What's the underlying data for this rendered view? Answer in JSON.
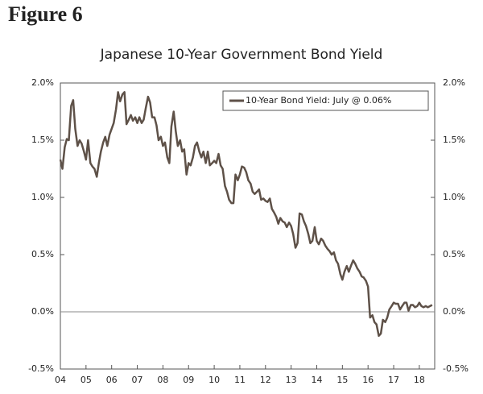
{
  "figure_label": "Figure 6",
  "chart_data": {
    "type": "line",
    "title": "Japanese 10-Year Government Bond Yield",
    "x": [
      2004.0,
      2004.08,
      2004.17,
      2004.25,
      2004.33,
      2004.42,
      2004.5,
      2004.58,
      2004.67,
      2004.75,
      2004.83,
      2004.92,
      2005.0,
      2005.08,
      2005.17,
      2005.25,
      2005.33,
      2005.42,
      2005.5,
      2005.58,
      2005.67,
      2005.75,
      2005.83,
      2005.92,
      2006.0,
      2006.08,
      2006.17,
      2006.25,
      2006.33,
      2006.42,
      2006.5,
      2006.58,
      2006.67,
      2006.75,
      2006.83,
      2006.92,
      2007.0,
      2007.08,
      2007.17,
      2007.25,
      2007.33,
      2007.42,
      2007.5,
      2007.58,
      2007.67,
      2007.75,
      2007.83,
      2007.92,
      2008.0,
      2008.08,
      2008.17,
      2008.25,
      2008.33,
      2008.42,
      2008.5,
      2008.58,
      2008.67,
      2008.75,
      2008.83,
      2008.92,
      2009.0,
      2009.08,
      2009.17,
      2009.25,
      2009.33,
      2009.42,
      2009.5,
      2009.58,
      2009.67,
      2009.75,
      2009.83,
      2009.92,
      2010.0,
      2010.08,
      2010.17,
      2010.25,
      2010.33,
      2010.42,
      2010.5,
      2010.58,
      2010.67,
      2010.75,
      2010.83,
      2010.92,
      2011.0,
      2011.08,
      2011.17,
      2011.25,
      2011.33,
      2011.42,
      2011.5,
      2011.58,
      2011.67,
      2011.75,
      2011.83,
      2011.92,
      2012.0,
      2012.08,
      2012.17,
      2012.25,
      2012.33,
      2012.42,
      2012.5,
      2012.58,
      2012.67,
      2012.75,
      2012.83,
      2012.92,
      2013.0,
      2013.08,
      2013.17,
      2013.25,
      2013.33,
      2013.42,
      2013.5,
      2013.58,
      2013.67,
      2013.75,
      2013.83,
      2013.92,
      2014.0,
      2014.08,
      2014.17,
      2014.25,
      2014.33,
      2014.42,
      2014.5,
      2014.58,
      2014.67,
      2014.75,
      2014.83,
      2014.92,
      2015.0,
      2015.08,
      2015.17,
      2015.25,
      2015.33,
      2015.42,
      2015.5,
      2015.58,
      2015.67,
      2015.75,
      2015.83,
      2015.92,
      2016.0,
      2016.08,
      2016.17,
      2016.25,
      2016.33,
      2016.42,
      2016.5,
      2016.58,
      2016.67,
      2016.75,
      2016.83,
      2016.92,
      2017.0,
      2017.08,
      2017.17,
      2017.25,
      2017.33,
      2017.42,
      2017.5,
      2017.58,
      2017.67,
      2017.75,
      2017.83,
      2017.92,
      2018.0,
      2018.08,
      2018.17,
      2018.25,
      2018.33,
      2018.42,
      2018.5
    ],
    "series": [
      {
        "name": "10-Year Bond Yield: July @ 0.06%",
        "color": "#5e5148",
        "values": [
          1.33,
          1.25,
          1.44,
          1.51,
          1.5,
          1.8,
          1.85,
          1.6,
          1.45,
          1.5,
          1.47,
          1.4,
          1.33,
          1.5,
          1.3,
          1.27,
          1.25,
          1.18,
          1.3,
          1.4,
          1.48,
          1.53,
          1.45,
          1.55,
          1.6,
          1.65,
          1.77,
          1.92,
          1.84,
          1.9,
          1.92,
          1.64,
          1.68,
          1.72,
          1.67,
          1.7,
          1.65,
          1.7,
          1.65,
          1.68,
          1.78,
          1.88,
          1.83,
          1.7,
          1.7,
          1.63,
          1.5,
          1.53,
          1.45,
          1.48,
          1.35,
          1.3,
          1.62,
          1.75,
          1.58,
          1.45,
          1.5,
          1.4,
          1.42,
          1.2,
          1.3,
          1.28,
          1.35,
          1.45,
          1.48,
          1.4,
          1.35,
          1.4,
          1.3,
          1.4,
          1.28,
          1.3,
          1.32,
          1.3,
          1.38,
          1.28,
          1.25,
          1.1,
          1.05,
          0.98,
          0.95,
          0.95,
          1.2,
          1.15,
          1.2,
          1.27,
          1.26,
          1.22,
          1.15,
          1.12,
          1.05,
          1.03,
          1.05,
          1.07,
          0.98,
          0.99,
          0.97,
          0.96,
          0.99,
          0.9,
          0.87,
          0.83,
          0.77,
          0.82,
          0.79,
          0.78,
          0.74,
          0.78,
          0.75,
          0.68,
          0.56,
          0.6,
          0.86,
          0.85,
          0.79,
          0.75,
          0.68,
          0.6,
          0.62,
          0.74,
          0.62,
          0.59,
          0.64,
          0.62,
          0.58,
          0.55,
          0.53,
          0.5,
          0.52,
          0.45,
          0.42,
          0.33,
          0.28,
          0.35,
          0.4,
          0.35,
          0.4,
          0.45,
          0.42,
          0.38,
          0.35,
          0.31,
          0.3,
          0.27,
          0.22,
          -0.05,
          -0.03,
          -0.09,
          -0.11,
          -0.21,
          -0.19,
          -0.07,
          -0.09,
          -0.05,
          0.02,
          0.05,
          0.08,
          0.07,
          0.07,
          0.02,
          0.05,
          0.08,
          0.08,
          0.01,
          0.06,
          0.06,
          0.04,
          0.05,
          0.08,
          0.05,
          0.04,
          0.05,
          0.04,
          0.05,
          0.06
        ]
      }
    ],
    "xlim": [
      2004,
      2018.6
    ],
    "xticks": [
      {
        "value": 2004,
        "label": "04"
      },
      {
        "value": 2005,
        "label": "05"
      },
      {
        "value": 2006,
        "label": "06"
      },
      {
        "value": 2007,
        "label": "07"
      },
      {
        "value": 2008,
        "label": "08"
      },
      {
        "value": 2009,
        "label": "09"
      },
      {
        "value": 2010,
        "label": "10"
      },
      {
        "value": 2011,
        "label": "11"
      },
      {
        "value": 2012,
        "label": "12"
      },
      {
        "value": 2013,
        "label": "13"
      },
      {
        "value": 2014,
        "label": "14"
      },
      {
        "value": 2015,
        "label": "15"
      },
      {
        "value": 2016,
        "label": "16"
      },
      {
        "value": 2017,
        "label": "17"
      },
      {
        "value": 2018,
        "label": "18"
      }
    ],
    "ylim": [
      -0.5,
      2.0
    ],
    "yticks": [
      {
        "value": -0.5,
        "label": "-0.5%"
      },
      {
        "value": 0,
        "label": "0.0%"
      },
      {
        "value": 0.5,
        "label": "0.5%"
      },
      {
        "value": 1.0,
        "label": "1.0%"
      },
      {
        "value": 1.5,
        "label": "1.5%"
      },
      {
        "value": 2.0,
        "label": "2.0%"
      }
    ],
    "y2lim": [
      -0.5,
      2.0
    ],
    "y2ticks": [
      {
        "value": -0.5,
        "label": "-0.5%"
      },
      {
        "value": 0,
        "label": "0.0%"
      },
      {
        "value": 0.5,
        "label": "0.5%"
      },
      {
        "value": 1.0,
        "label": "1.0%"
      },
      {
        "value": 1.5,
        "label": "1.5%"
      },
      {
        "value": 2.0,
        "label": "2.0%"
      }
    ],
    "zero_line": true,
    "grid": false,
    "legend": "upper right"
  }
}
